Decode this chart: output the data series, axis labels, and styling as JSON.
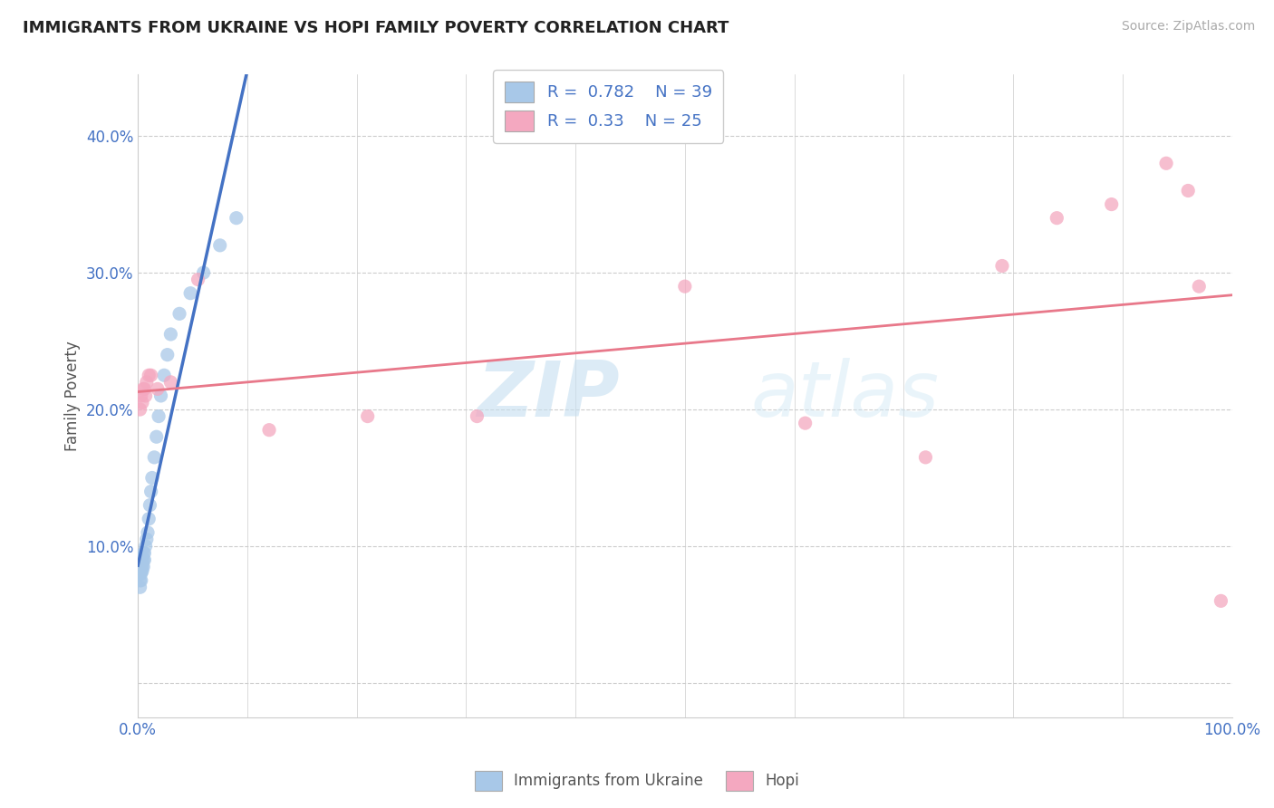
{
  "title": "IMMIGRANTS FROM UKRAINE VS HOPI FAMILY POVERTY CORRELATION CHART",
  "source_text": "Source: ZipAtlas.com",
  "ylabel": "Family Poverty",
  "xlim": [
    0.0,
    1.0
  ],
  "ylim": [
    -0.025,
    0.445
  ],
  "x_ticks": [
    0.0,
    0.1,
    0.2,
    0.3,
    0.4,
    0.5,
    0.6,
    0.7,
    0.8,
    0.9,
    1.0
  ],
  "y_ticks": [
    0.0,
    0.1,
    0.2,
    0.3,
    0.4
  ],
  "grid_color": "#cccccc",
  "background_color": "#ffffff",
  "ukraine_color": "#a8c8e8",
  "hopi_color": "#f4a8c0",
  "ukraine_line_color": "#4472c4",
  "hopi_line_color": "#e8788a",
  "legend_ukraine_label": "Immigrants from Ukraine",
  "legend_hopi_label": "Hopi",
  "R_ukraine": 0.782,
  "N_ukraine": 39,
  "R_hopi": 0.33,
  "N_hopi": 25,
  "watermark_zip": "ZIP",
  "watermark_atlas": "atlas",
  "ukraine_x": [
    0.002,
    0.002,
    0.002,
    0.002,
    0.002,
    0.003,
    0.003,
    0.003,
    0.003,
    0.003,
    0.003,
    0.004,
    0.004,
    0.004,
    0.004,
    0.005,
    0.005,
    0.005,
    0.006,
    0.006,
    0.007,
    0.008,
    0.009,
    0.01,
    0.011,
    0.012,
    0.013,
    0.015,
    0.017,
    0.019,
    0.021,
    0.024,
    0.027,
    0.03,
    0.038,
    0.048,
    0.06,
    0.075,
    0.09
  ],
  "ukraine_y": [
    0.07,
    0.075,
    0.08,
    0.082,
    0.088,
    0.075,
    0.08,
    0.082,
    0.085,
    0.09,
    0.092,
    0.082,
    0.085,
    0.088,
    0.092,
    0.085,
    0.09,
    0.095,
    0.09,
    0.095,
    0.1,
    0.105,
    0.11,
    0.12,
    0.13,
    0.14,
    0.15,
    0.165,
    0.18,
    0.195,
    0.21,
    0.225,
    0.24,
    0.255,
    0.27,
    0.285,
    0.3,
    0.32,
    0.34
  ],
  "hopi_x": [
    0.002,
    0.003,
    0.004,
    0.005,
    0.006,
    0.007,
    0.008,
    0.01,
    0.012,
    0.018,
    0.03,
    0.055,
    0.12,
    0.21,
    0.31,
    0.5,
    0.61,
    0.72,
    0.79,
    0.84,
    0.89,
    0.94,
    0.96,
    0.97,
    0.99
  ],
  "hopi_y": [
    0.2,
    0.21,
    0.205,
    0.215,
    0.215,
    0.21,
    0.22,
    0.225,
    0.225,
    0.215,
    0.22,
    0.295,
    0.185,
    0.195,
    0.195,
    0.29,
    0.19,
    0.165,
    0.305,
    0.34,
    0.35,
    0.38,
    0.36,
    0.29,
    0.06
  ]
}
